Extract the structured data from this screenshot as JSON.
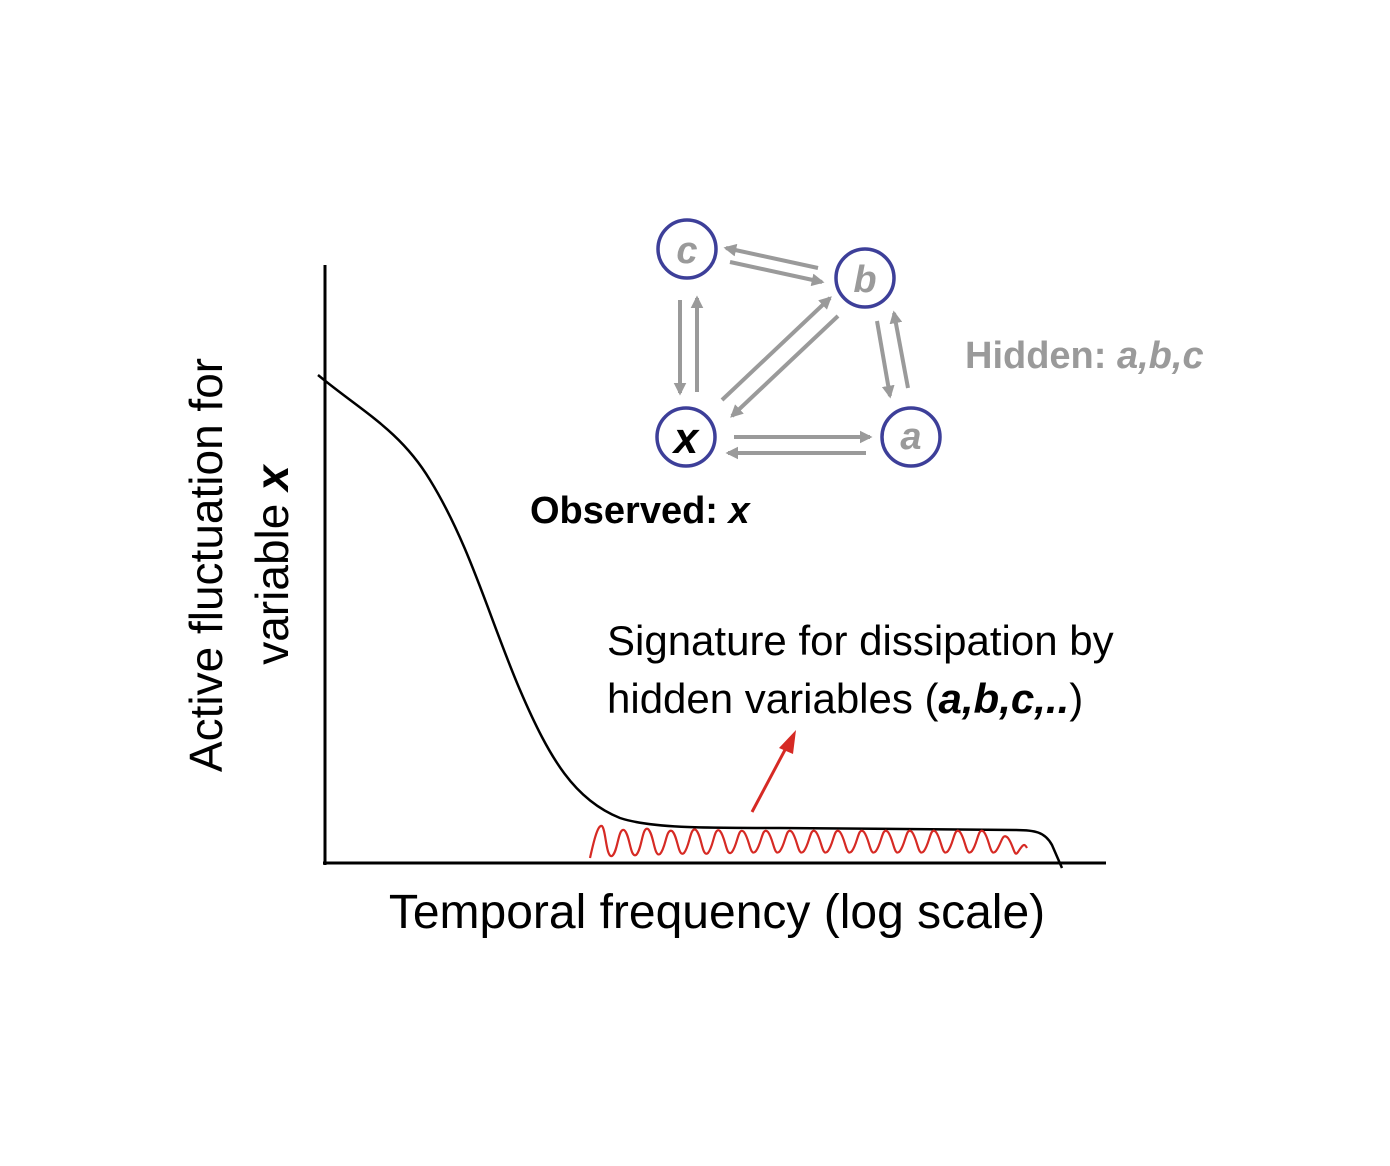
{
  "figure": {
    "y_axis_label_line1": "Active fluctuation for",
    "y_axis_label_line2_prefix": "variable ",
    "y_axis_label_line2_var": "x",
    "x_axis_label": "Temporal frequency (log scale)",
    "annotation_line1": "Signature for dissipation by",
    "annotation_line2_prefix": "hidden variables (",
    "annotation_line2_vars": "a,b,c,..",
    "annotation_line2_suffix": ")"
  },
  "network": {
    "nodes": {
      "c": "c",
      "b": "b",
      "x": "x",
      "a": "a"
    },
    "hidden_prefix": "Hidden: ",
    "hidden_vars": "a,b,c",
    "observed_prefix": "Observed: ",
    "observed_var": "x"
  },
  "colors": {
    "curve": "#000000",
    "signature": "#d62a24",
    "node_stroke": "#3d3f99",
    "arrow": "#9a9a9a",
    "hidden_text": "#9a9a9a"
  },
  "icons": {
    "node_shape": "circle",
    "edge_shape": "double-arrow"
  }
}
